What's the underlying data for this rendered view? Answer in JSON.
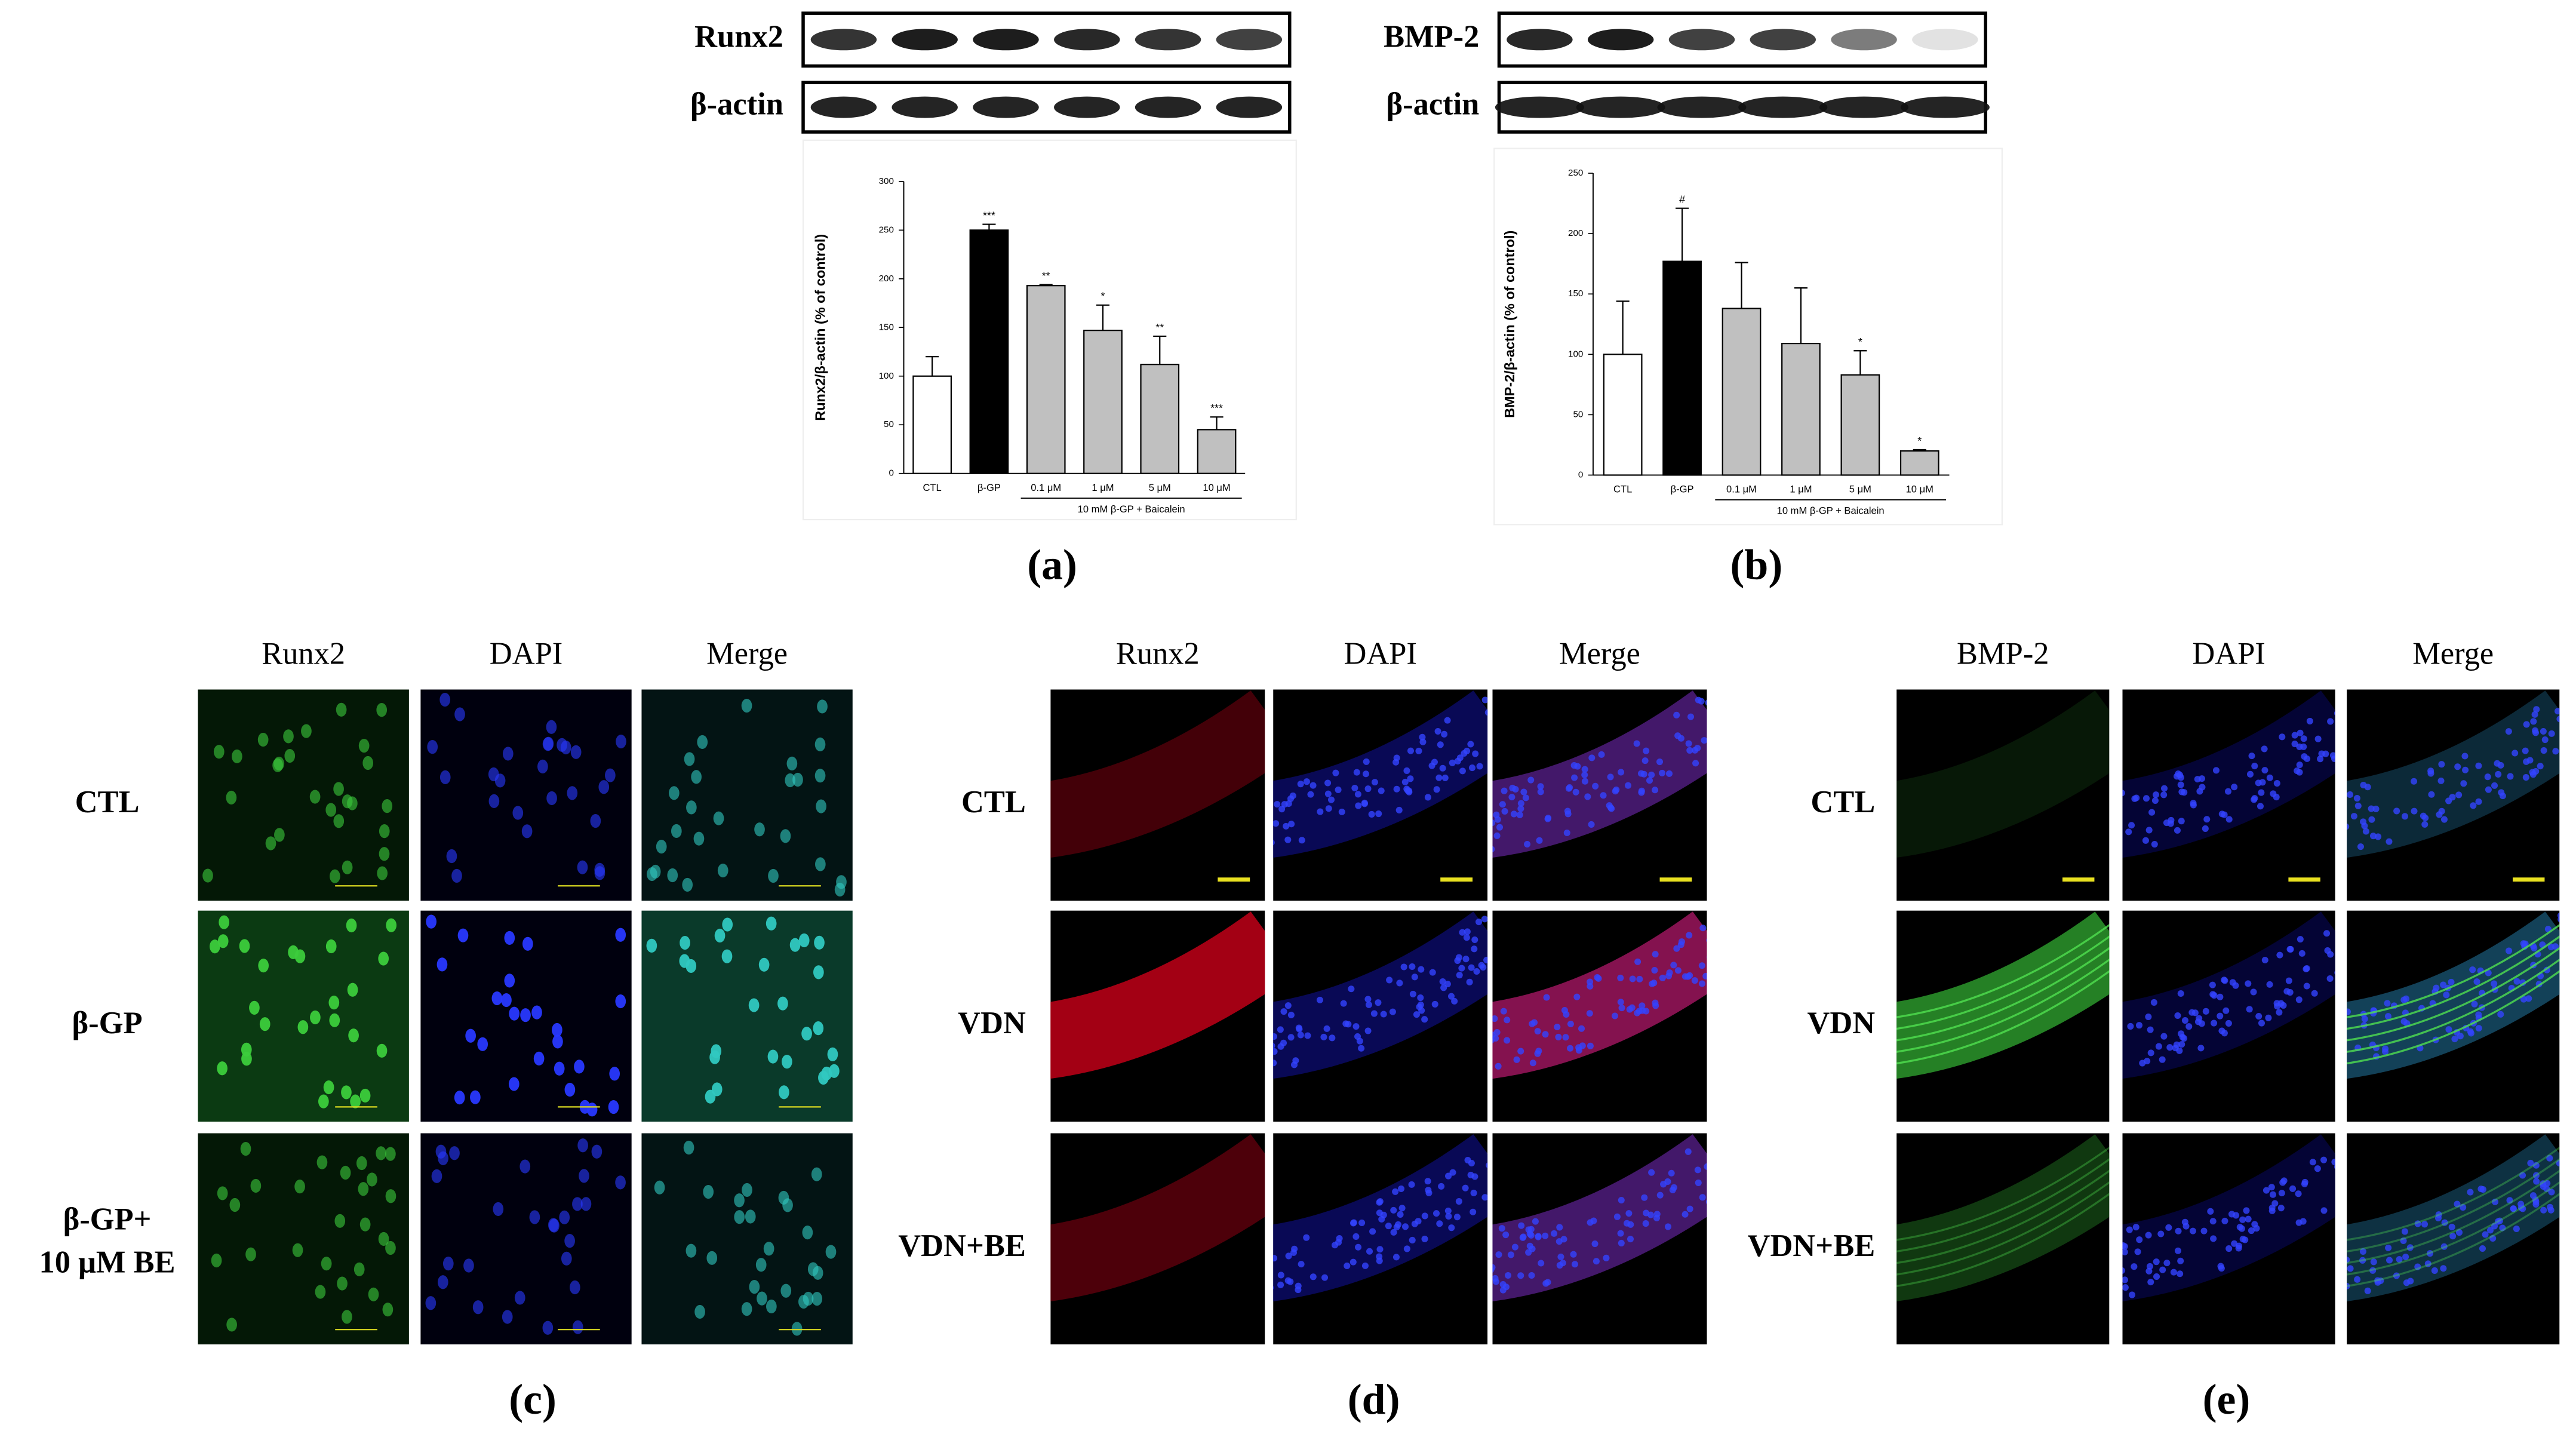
{
  "blots": [
    {
      "target": "Runx2",
      "control": "β-actin"
    },
    {
      "target": "BMP-2",
      "control": "β-actin"
    }
  ],
  "chart_data": [
    {
      "type": "bar",
      "ylabel": "Runx2/β-actin (% of control)",
      "categories": [
        "CTL",
        "β-GP",
        "0.1 μM",
        "1 μM",
        "5 μM",
        "10 μM"
      ],
      "values": [
        100,
        250,
        193,
        147,
        112,
        45
      ],
      "errors": [
        20,
        6,
        1,
        26,
        29,
        13
      ],
      "colors": [
        "#ffffff",
        "#000000",
        "#c0c0c0",
        "#c0c0c0",
        "#c0c0c0",
        "#c0c0c0"
      ],
      "annotations": [
        "",
        "***",
        "**",
        "*",
        "**",
        "***"
      ],
      "group_label": "10 mM β-GP + Baicalein",
      "ylim": [
        0,
        300
      ],
      "yticks": [
        0,
        50,
        100,
        150,
        200,
        250,
        300
      ]
    },
    {
      "type": "bar",
      "ylabel": "BMP-2/β-actin (% of control)",
      "categories": [
        "CTL",
        "β-GP",
        "0.1 μM",
        "1 μM",
        "5 μM",
        "10 μM"
      ],
      "values": [
        100,
        177,
        138,
        109,
        83,
        20
      ],
      "errors": [
        44,
        44,
        38,
        46,
        20,
        1
      ],
      "colors": [
        "#ffffff",
        "#000000",
        "#c0c0c0",
        "#c0c0c0",
        "#c0c0c0",
        "#c0c0c0"
      ],
      "annotations": [
        null,
        "#",
        null,
        null,
        "*",
        "*"
      ],
      "group_label": "10 mM β-GP + Baicalein",
      "ylim": [
        0,
        250
      ],
      "yticks": [
        0,
        50,
        100,
        150,
        200,
        250
      ]
    }
  ],
  "panel_labels": [
    "(a)",
    "(b)",
    "(c)",
    "(d)",
    "(e)"
  ],
  "micrographs": [
    {
      "columns": [
        "Runx2",
        "DAPI",
        "Merge"
      ],
      "rows": [
        [
          "CTL"
        ],
        [
          "β-GP"
        ],
        [
          "β-GP+",
          "10 μM BE"
        ]
      ]
    },
    {
      "columns": [
        "Runx2",
        "DAPI",
        "Merge"
      ],
      "rows": [
        [
          "CTL"
        ],
        [
          "VDN"
        ],
        [
          "VDN+BE"
        ]
      ]
    },
    {
      "columns": [
        "BMP-2",
        "DAPI",
        "Merge"
      ],
      "rows": [
        [
          "CTL"
        ],
        [
          "VDN"
        ],
        [
          "VDN+BE"
        ]
      ]
    }
  ]
}
